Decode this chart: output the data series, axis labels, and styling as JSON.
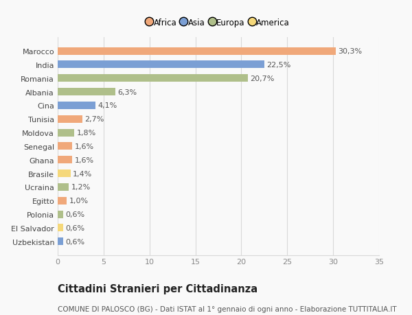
{
  "countries": [
    "Uzbekistan",
    "El Salvador",
    "Polonia",
    "Egitto",
    "Ucraina",
    "Brasile",
    "Ghana",
    "Senegal",
    "Moldova",
    "Tunisia",
    "Cina",
    "Albania",
    "Romania",
    "India",
    "Marocco"
  ],
  "values": [
    0.6,
    0.6,
    0.6,
    1.0,
    1.2,
    1.4,
    1.6,
    1.6,
    1.8,
    2.7,
    4.1,
    6.3,
    20.7,
    22.5,
    30.3
  ],
  "labels": [
    "0,6%",
    "0,6%",
    "0,6%",
    "1,0%",
    "1,2%",
    "1,4%",
    "1,6%",
    "1,6%",
    "1,8%",
    "2,7%",
    "4,1%",
    "6,3%",
    "20,7%",
    "22,5%",
    "30,3%"
  ],
  "continents": [
    "Asia",
    "America",
    "Europa",
    "Africa",
    "Europa",
    "America",
    "Africa",
    "Africa",
    "Europa",
    "Africa",
    "Asia",
    "Europa",
    "Europa",
    "Asia",
    "Africa"
  ],
  "continent_colors": {
    "Africa": "#F0A87A",
    "Asia": "#7B9FD4",
    "Europa": "#AFBF8A",
    "America": "#F5D87A"
  },
  "legend_order": [
    "Africa",
    "Asia",
    "Europa",
    "America"
  ],
  "legend_colors": [
    "#F0A87A",
    "#7B9FD4",
    "#AFBF8A",
    "#F5D87A"
  ],
  "xlim": [
    0,
    35
  ],
  "xticks": [
    0,
    5,
    10,
    15,
    20,
    25,
    30,
    35
  ],
  "title": "Cittadini Stranieri per Cittadinanza",
  "subtitle": "COMUNE DI PALOSCO (BG) - Dati ISTAT al 1° gennaio di ogni anno - Elaborazione TUTTITALIA.IT",
  "bg_color": "#f9f9f9",
  "grid_color": "#d8d8d8",
  "bar_height": 0.55,
  "label_fontsize": 8,
  "tick_fontsize": 8,
  "title_fontsize": 10.5,
  "subtitle_fontsize": 7.5,
  "legend_fontsize": 8.5
}
